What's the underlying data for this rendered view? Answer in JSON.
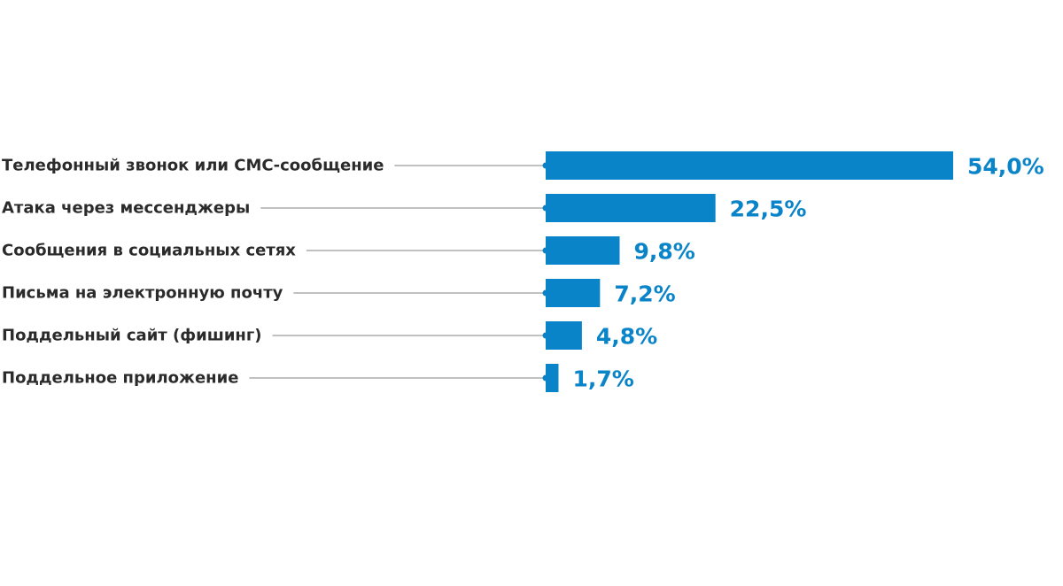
{
  "chart_data": {
    "type": "bar",
    "orientation": "horizontal",
    "title": "",
    "xlabel": "",
    "ylabel": "",
    "xlim": [
      0,
      54
    ],
    "grid": false,
    "categories": [
      "Телефонный звонок или СМС-сообщение",
      "Атака через мессенджеры",
      "Сообщения в социальных сетях",
      "Письма на электронную почту",
      "Поддельный сайт (фишинг)",
      "Поддельное приложение"
    ],
    "values": [
      54.0,
      22.5,
      9.8,
      7.2,
      4.8,
      1.7
    ],
    "value_labels": [
      "54,0%",
      "22,5%",
      "9,8%",
      "7,2%",
      "4,8%",
      "1,7%"
    ],
    "colors": {
      "bar": "#0A84C8",
      "value_text": "#0A84C8",
      "category_text": "#2B2B2B",
      "leader_line": "#9A9A9A"
    }
  }
}
